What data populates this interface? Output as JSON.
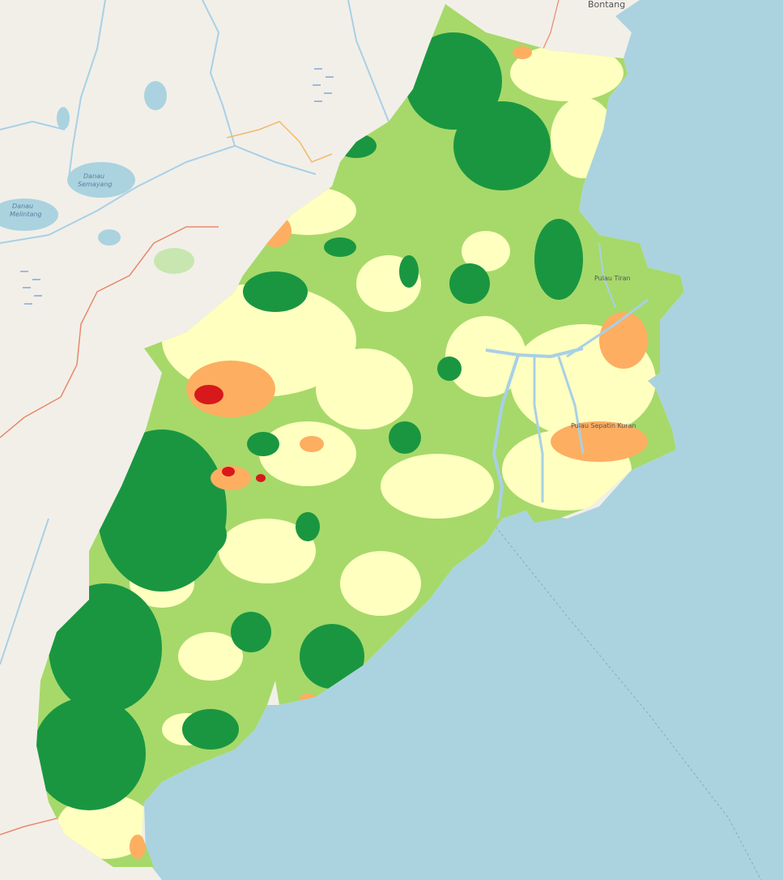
{
  "map": {
    "colors": {
      "land": "#f2efe9",
      "sea": "#aad3df",
      "river": "#a8d0e6",
      "boundary": "#e88a6a",
      "road": "#f4b86a",
      "very_high": "#1a9641",
      "high": "#a6d96a",
      "medium": "#ffffc0",
      "low": "#fdae61",
      "very_low": "#d7191c"
    },
    "labels": {
      "bontang": "Bontang",
      "danau_semayang": [
        "Danau",
        "Semayang"
      ],
      "danau_melintang": [
        "Danau",
        "Melintang"
      ],
      "delta_north": "Pulau Tiran",
      "delta_south": "Pulau Sepatin Kuran"
    }
  }
}
